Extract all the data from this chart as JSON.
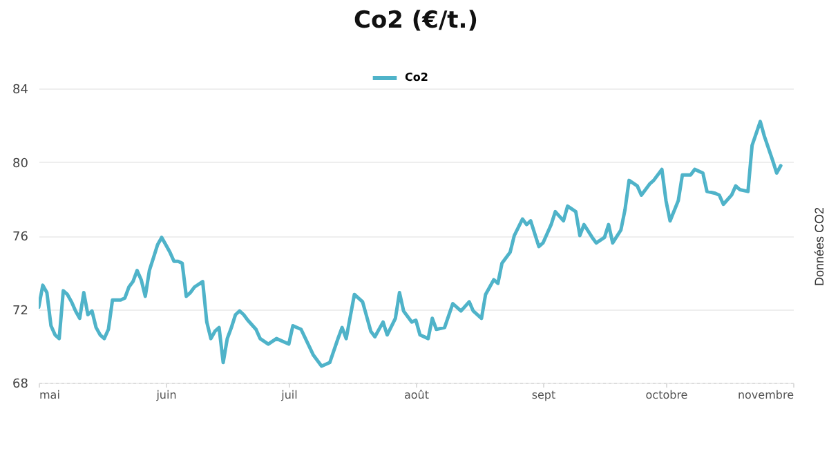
{
  "chart_data": {
    "type": "line",
    "title": "Co2 (€/t.)",
    "annotations": [
      "Données CO2"
    ],
    "x": [
      "--05-01",
      "--05-02",
      "--05-03",
      "--05-04",
      "--05-05",
      "--05-06",
      "--05-07",
      "--05-08",
      "--05-09",
      "--05-10",
      "--05-11",
      "--05-12",
      "--05-13",
      "--05-14",
      "--05-15",
      "--05-16",
      "--05-17",
      "--05-18",
      "--05-19",
      "--05-21",
      "--05-22",
      "--05-23",
      "--05-24",
      "--05-25",
      "--05-26",
      "--05-27",
      "--05-28",
      "--05-29",
      "--05-30",
      "--05-31",
      "--06-01",
      "--06-02",
      "--06-03",
      "--06-04",
      "--06-05",
      "--06-06",
      "--06-07",
      "--06-08",
      "--06-10",
      "--06-11",
      "--06-12",
      "--06-13",
      "--06-14",
      "--06-15",
      "--06-16",
      "--06-17",
      "--06-18",
      "--06-19",
      "--06-20",
      "--06-21",
      "--06-23",
      "--06-24",
      "--06-26",
      "--06-28",
      "--07-01",
      "--07-02",
      "--07-04",
      "--07-07",
      "--07-09",
      "--07-11",
      "--07-13",
      "--07-14",
      "--07-15",
      "--07-17",
      "--07-19",
      "--07-21",
      "--07-22",
      "--07-24",
      "--07-25",
      "--07-27",
      "--07-28",
      "--07-29",
      "--07-31",
      "--08-01",
      "--08-02",
      "--08-04",
      "--08-05",
      "--08-06",
      "--08-08",
      "--08-10",
      "--08-12",
      "--08-14",
      "--08-15",
      "--08-17",
      "--08-18",
      "--08-20",
      "--08-21",
      "--08-22",
      "--08-24",
      "--08-25",
      "--08-27",
      "--08-28",
      "--08-29",
      "--08-31",
      "--09-01",
      "--09-03",
      "--09-04",
      "--09-06",
      "--09-07",
      "--09-09",
      "--09-10",
      "--09-11",
      "--09-13",
      "--09-14",
      "--09-16",
      "--09-17",
      "--09-18",
      "--09-20",
      "--09-21",
      "--09-22",
      "--09-24",
      "--09-25",
      "--09-27",
      "--09-28",
      "--09-30",
      "--10-01",
      "--10-02",
      "--10-04",
      "--10-05",
      "--10-07",
      "--10-08",
      "--10-10",
      "--10-11",
      "--10-13",
      "--10-14",
      "--10-15",
      "--10-17",
      "--10-18",
      "--10-19",
      "--10-21",
      "--10-22",
      "--10-24",
      "--10-25",
      "--10-27",
      "--10-28",
      "--10-29"
    ],
    "series": [
      {
        "name": "Co2",
        "color": "#4fb3c9",
        "values": [
          72.1,
          73.3,
          72.9,
          71.1,
          70.6,
          70.4,
          73.0,
          72.8,
          72.4,
          71.9,
          71.5,
          72.9,
          71.7,
          71.9,
          71.0,
          70.6,
          70.4,
          70.9,
          72.5,
          72.5,
          72.6,
          73.2,
          73.5,
          74.1,
          73.6,
          72.7,
          74.1,
          74.8,
          75.5,
          75.9,
          75.5,
          75.1,
          74.6,
          74.6,
          74.5,
          72.7,
          72.9,
          73.2,
          73.5,
          71.3,
          70.4,
          70.8,
          71.0,
          69.1,
          70.4,
          71.0,
          71.7,
          71.9,
          71.7,
          71.4,
          70.9,
          70.4,
          70.1,
          70.4,
          70.1,
          71.1,
          70.9,
          69.5,
          68.9,
          69.1,
          70.4,
          71.0,
          70.4,
          72.8,
          72.4,
          70.8,
          70.5,
          71.3,
          70.6,
          71.5,
          72.9,
          71.9,
          71.3,
          71.4,
          70.6,
          70.4,
          71.5,
          70.9,
          71.0,
          72.3,
          71.9,
          72.4,
          71.9,
          71.5,
          72.8,
          73.6,
          73.4,
          74.5,
          75.1,
          76.0,
          76.9,
          76.6,
          76.8,
          75.4,
          75.6,
          76.6,
          77.3,
          76.8,
          77.6,
          77.3,
          76.0,
          76.6,
          75.9,
          75.6,
          75.9,
          76.6,
          75.6,
          76.3,
          77.4,
          79.0,
          78.7,
          78.2,
          78.8,
          79.0,
          79.6,
          77.9,
          76.8,
          77.9,
          79.3,
          79.3,
          79.6,
          79.4,
          78.4,
          78.3,
          78.2,
          77.7,
          78.2,
          78.7,
          78.5,
          78.4,
          80.9,
          82.2,
          81.4,
          80.1,
          79.4,
          79.8
        ]
      }
    ],
    "xlim": [
      "--05-01",
      "--11-01"
    ],
    "xticks": [
      {
        "value": "--05-01",
        "label": "mai"
      },
      {
        "value": "--06-01",
        "label": "juin"
      },
      {
        "value": "--07-01",
        "label": "juil"
      },
      {
        "value": "--08-01",
        "label": "août"
      },
      {
        "value": "--09-01",
        "label": "sept"
      },
      {
        "value": "--10-01",
        "label": "octobre"
      },
      {
        "value": "--11-01",
        "label": "novembre"
      }
    ],
    "ylim": [
      68,
      84
    ],
    "yticks": [
      68,
      72,
      76,
      80,
      84
    ],
    "grid": "y",
    "legend": "top",
    "marker": "none",
    "line_style": "solid"
  }
}
